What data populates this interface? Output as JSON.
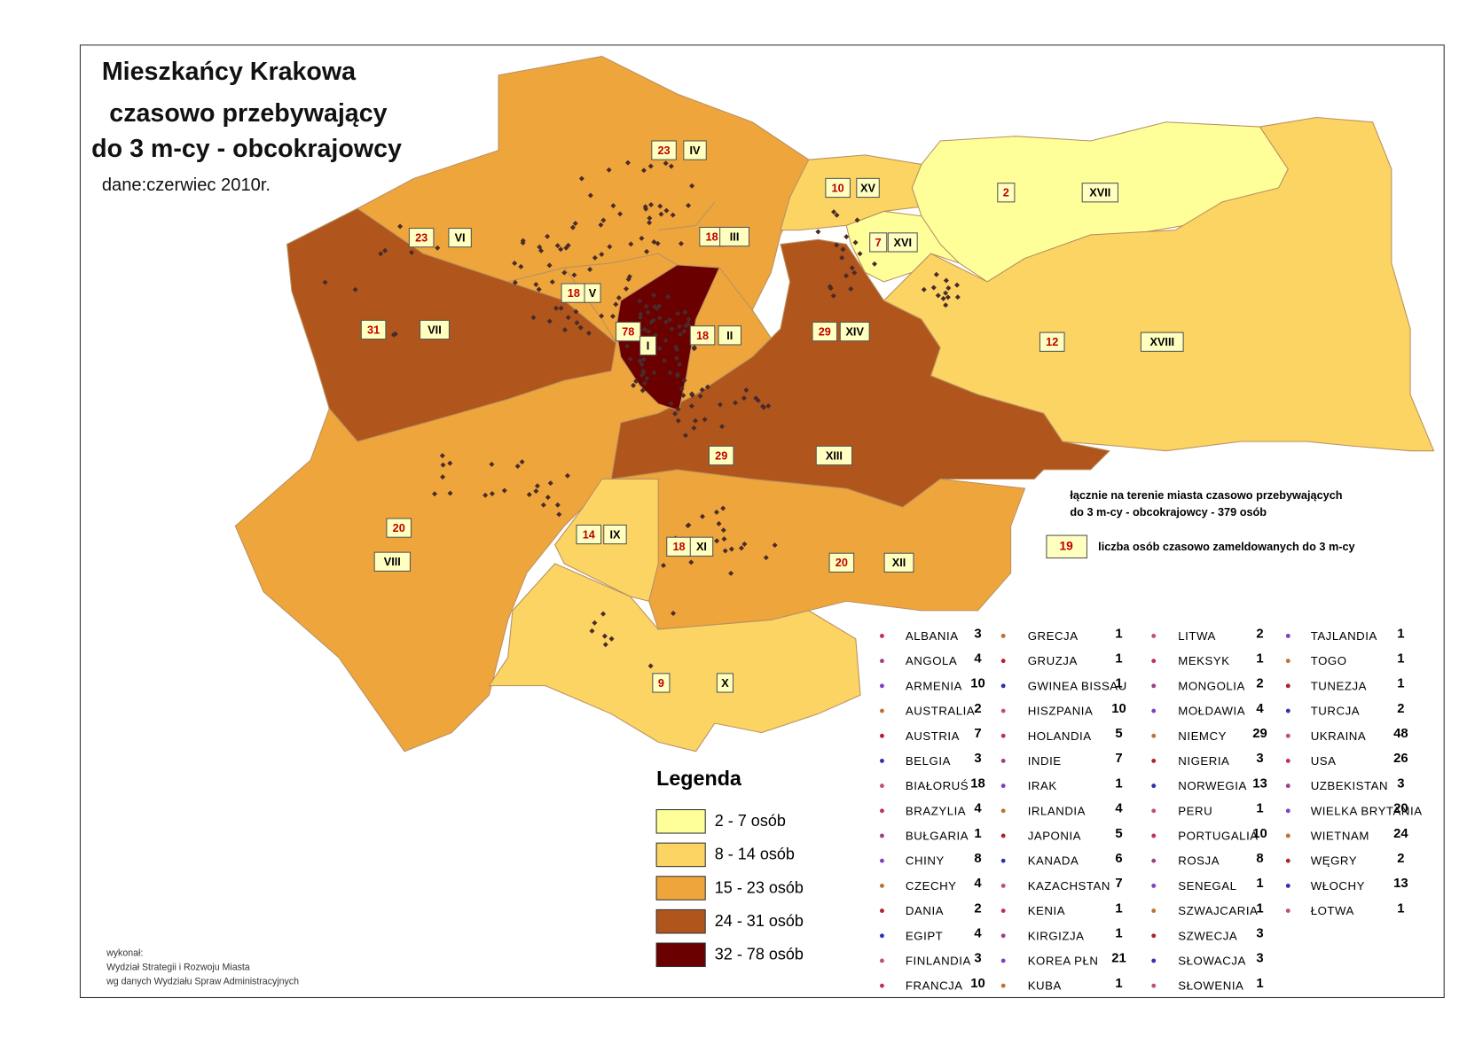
{
  "title": [
    "Mieszkańcy Krakowa",
    "czasowo przebywający",
    "do 3 m-cy - obcokrajowcy"
  ],
  "subtitle": "dane:czerwiec 2010r.",
  "districts": [
    {
      "id": "I",
      "count": 78
    },
    {
      "id": "II",
      "count": 18
    },
    {
      "id": "III",
      "count": 18
    },
    {
      "id": "IV",
      "count": 23
    },
    {
      "id": "V",
      "count": 18
    },
    {
      "id": "VI",
      "count": 23
    },
    {
      "id": "VII",
      "count": 31
    },
    {
      "id": "VIII",
      "count": 20
    },
    {
      "id": "IX",
      "count": 14
    },
    {
      "id": "X",
      "count": 9
    },
    {
      "id": "XI",
      "count": 18
    },
    {
      "id": "XII",
      "count": 20
    },
    {
      "id": "XIII",
      "count": 29
    },
    {
      "id": "XIV",
      "count": 29
    },
    {
      "id": "XV",
      "count": 10
    },
    {
      "id": "XVI",
      "count": 7
    },
    {
      "id": "XVII",
      "count": 2
    },
    {
      "id": "XVIII",
      "count": 12
    }
  ],
  "legend": {
    "title": "Legenda",
    "classes": [
      {
        "label": "2 - 7 osób",
        "color": "#ffff99"
      },
      {
        "label": "8 - 14 osób",
        "color": "#fbd464"
      },
      {
        "label": "15 - 23 osób",
        "color": "#eea63c"
      },
      {
        "label": "24 - 31 osób",
        "color": "#b0561c"
      },
      {
        "label": "32 - 78 osób",
        "color": "#6b0000"
      }
    ]
  },
  "note": {
    "lines": [
      "łącznie na terenie miasta czasowo przebywających",
      "do 3 m-cy - obcokrajowcy - 379 osób"
    ],
    "sample": "19",
    "sample_caption": "liczba osób czasowo zameldowanych do 3 m-cy"
  },
  "credit": [
    "wykonał:",
    "Wydział Strategii i Rozwoju Miasta",
    "wg danych Wydziału Spraw Administracyjnych"
  ],
  "countries": [
    [
      {
        "name": "ALBANIA",
        "count": 3
      },
      {
        "name": "ANGOLA",
        "count": 4
      },
      {
        "name": "ARMENIA",
        "count": 10
      },
      {
        "name": "AUSTRALIA",
        "count": 2
      },
      {
        "name": "AUSTRIA",
        "count": 7
      },
      {
        "name": "BELGIA",
        "count": 3
      },
      {
        "name": "BIAŁORUŚ",
        "count": 18
      },
      {
        "name": "BRAZYLIA",
        "count": 4
      },
      {
        "name": "BUŁGARIA",
        "count": 1
      },
      {
        "name": "CHINY",
        "count": 8
      },
      {
        "name": "CZECHY",
        "count": 4
      },
      {
        "name": "DANIA",
        "count": 2
      },
      {
        "name": "EGIPT",
        "count": 4
      },
      {
        "name": "FINLANDIA",
        "count": 3
      },
      {
        "name": "FRANCJA",
        "count": 10
      }
    ],
    [
      {
        "name": "GRECJA",
        "count": 1
      },
      {
        "name": "GRUZJA",
        "count": 1
      },
      {
        "name": "GWINEA BISSAU",
        "count": 1
      },
      {
        "name": "HISZPANIA",
        "count": 10
      },
      {
        "name": "HOLANDIA",
        "count": 5
      },
      {
        "name": "INDIE",
        "count": 7
      },
      {
        "name": "IRAK",
        "count": 1
      },
      {
        "name": "IRLANDIA",
        "count": 4
      },
      {
        "name": "JAPONIA",
        "count": 5
      },
      {
        "name": "KANADA",
        "count": 6
      },
      {
        "name": "KAZACHSTAN",
        "count": 7
      },
      {
        "name": "KENIA",
        "count": 1
      },
      {
        "name": "KIRGIZJA",
        "count": 1
      },
      {
        "name": "KOREA PŁN",
        "count": 21
      },
      {
        "name": "KUBA",
        "count": 1
      }
    ],
    [
      {
        "name": "LITWA",
        "count": 2
      },
      {
        "name": "MEKSYK",
        "count": 1
      },
      {
        "name": "MONGOLIA",
        "count": 2
      },
      {
        "name": "MOŁDAWIA",
        "count": 4
      },
      {
        "name": "NIEMCY",
        "count": 29
      },
      {
        "name": "NIGERIA",
        "count": 3
      },
      {
        "name": "NORWEGIA",
        "count": 13
      },
      {
        "name": "PERU",
        "count": 1
      },
      {
        "name": "PORTUGALIA",
        "count": 10
      },
      {
        "name": "ROSJA",
        "count": 8
      },
      {
        "name": "SENEGAL",
        "count": 1
      },
      {
        "name": "SZWAJCARIA",
        "count": 1
      },
      {
        "name": "SZWECJA",
        "count": 3
      },
      {
        "name": "SŁOWACJA",
        "count": 3
      },
      {
        "name": "SŁOWENIA",
        "count": 1
      }
    ],
    [
      {
        "name": "TAJLANDIA",
        "count": 1
      },
      {
        "name": "TOGO",
        "count": 1
      },
      {
        "name": "TUNEZJA",
        "count": 1
      },
      {
        "name": "TURCJA",
        "count": 2
      },
      {
        "name": "UKRAINA",
        "count": 48
      },
      {
        "name": "USA",
        "count": 26
      },
      {
        "name": "UZBEKISTAN",
        "count": 3
      },
      {
        "name": "WIELKA BRYTANIA",
        "count": 20
      },
      {
        "name": "WIETNAM",
        "count": 24
      },
      {
        "name": "WĘGRY",
        "count": 2
      },
      {
        "name": "WŁOCHY",
        "count": 13
      },
      {
        "name": "ŁOTWA",
        "count": 1
      }
    ]
  ]
}
